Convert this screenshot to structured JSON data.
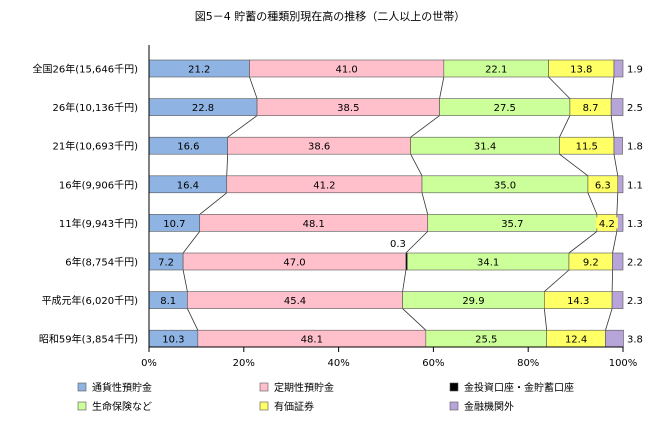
{
  "chart_data": {
    "type": "bar",
    "stacked": true,
    "orientation": "horizontal",
    "title": "図5－4 貯蓄の種類別現在高の推移（二人以上の世帯）",
    "categories": [
      "全国26年(15,646千円)",
      "26年(10,136千円)",
      "21年(10,693千円)",
      "16年(9,906千円)",
      "11年(9,943千円)",
      "6年(8,754千円)",
      "平成元年(6,020千円)",
      "昭和59年(3,854千円)"
    ],
    "series": [
      {
        "name": "通貨性預貯金",
        "color": "#8fb4e3",
        "values": [
          21.2,
          22.8,
          16.6,
          16.4,
          10.7,
          7.2,
          8.1,
          10.3
        ]
      },
      {
        "name": "定期性預貯金",
        "color": "#ffc0cb",
        "values": [
          41.0,
          38.5,
          38.6,
          41.2,
          48.1,
          47.0,
          45.4,
          48.1
        ]
      },
      {
        "name": "金投資口座・金貯蓄口座",
        "color": "#000000",
        "values": [
          0,
          0,
          0,
          0,
          0,
          0.3,
          0,
          0
        ]
      },
      {
        "name": "生命保険など",
        "color": "#ccff99",
        "values": [
          22.1,
          27.5,
          31.4,
          35.0,
          35.7,
          34.1,
          29.9,
          25.5
        ]
      },
      {
        "name": "有価証券",
        "color": "#ffff66",
        "values": [
          13.8,
          8.7,
          11.5,
          6.3,
          4.2,
          9.2,
          14.3,
          12.4
        ]
      },
      {
        "name": "金融機関外",
        "color": "#b7a5d9",
        "values": [
          1.9,
          2.5,
          1.8,
          1.1,
          1.3,
          2.2,
          2.3,
          3.8
        ]
      }
    ],
    "annotation": "0.3",
    "x_ticks": [
      "0%",
      "20%",
      "40%",
      "60%",
      "80%",
      "100%"
    ],
    "xlim": [
      0,
      100
    ],
    "legend_position": "bottom"
  }
}
